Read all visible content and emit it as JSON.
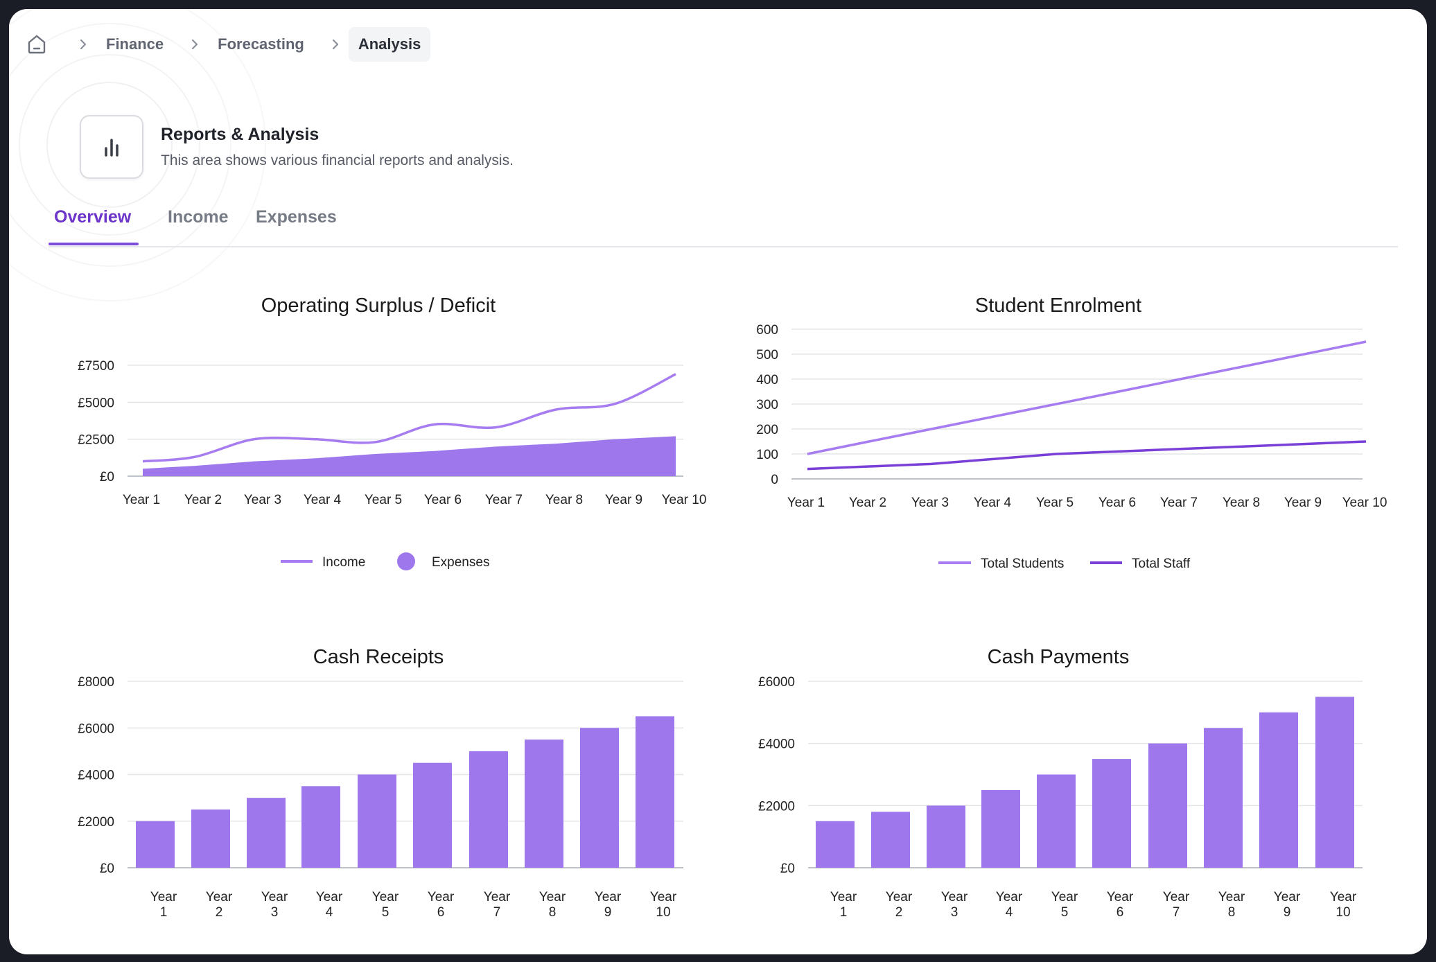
{
  "breadcrumb": {
    "items": [
      "Finance",
      "Forecasting",
      "Analysis"
    ]
  },
  "header": {
    "title": "Reports & Analysis",
    "subtitle": "This area shows various financial reports and analysis.",
    "icon": "bar-chart-icon"
  },
  "tabs": [
    "Overview",
    "Income",
    "Expenses"
  ],
  "active_tab": "Overview",
  "colors": {
    "accent": "#6d34c9",
    "series_light": "#a77cf0",
    "series_dark": "#7a3fd6",
    "bar": "#9e77ed"
  },
  "chart_data": [
    {
      "type": "area",
      "title": "Operating Surplus / Deficit",
      "categories": [
        "Year 1",
        "Year 2",
        "Year 3",
        "Year 4",
        "Year 5",
        "Year 6",
        "Year 7",
        "Year 8",
        "Year 9",
        "Year 10"
      ],
      "ytick_labels": [
        "£0",
        "£2500",
        "£5000",
        "£7500"
      ],
      "ylim": [
        0,
        7500
      ],
      "grid": true,
      "legend": "bottom",
      "series": [
        {
          "name": "Income",
          "kind": "line",
          "values": [
            1000,
            1300,
            2500,
            2500,
            2300,
            3500,
            3300,
            4500,
            4900,
            6900
          ]
        },
        {
          "name": "Expenses",
          "kind": "area",
          "values": [
            500,
            700,
            1000,
            1200,
            1500,
            1700,
            2000,
            2200,
            2500,
            2700
          ]
        }
      ]
    },
    {
      "type": "line",
      "title": "Student Enrolment",
      "categories": [
        "Year 1",
        "Year 2",
        "Year 3",
        "Year 4",
        "Year 5",
        "Year 6",
        "Year 7",
        "Year 8",
        "Year 9",
        "Year 10"
      ],
      "ytick_labels": [
        "0",
        "100",
        "200",
        "300",
        "400",
        "500",
        "600"
      ],
      "ylim": [
        0,
        600
      ],
      "grid": true,
      "legend": "bottom",
      "series": [
        {
          "name": "Total Students",
          "values": [
            100,
            150,
            200,
            250,
            300,
            350,
            400,
            450,
            500,
            550
          ]
        },
        {
          "name": "Total Staff",
          "values": [
            40,
            50,
            60,
            80,
            100,
            110,
            120,
            130,
            140,
            150
          ]
        }
      ]
    },
    {
      "type": "bar",
      "title": "Cash Receipts",
      "categories": [
        "Year 1",
        "Year 2",
        "Year 3",
        "Year 4",
        "Year 5",
        "Year 6",
        "Year 7",
        "Year 8",
        "Year 9",
        "Year 10"
      ],
      "ytick_labels": [
        "£0",
        "£2000",
        "£4000",
        "£6000",
        "£8000"
      ],
      "ylim": [
        0,
        8000
      ],
      "grid": true,
      "values": [
        2000,
        2500,
        3000,
        3500,
        4000,
        4500,
        5000,
        5500,
        6000,
        6500
      ]
    },
    {
      "type": "bar",
      "title": "Cash Payments",
      "categories": [
        "Year 1",
        "Year 2",
        "Year 3",
        "Year 4",
        "Year 5",
        "Year 6",
        "Year 7",
        "Year 8",
        "Year 9",
        "Year 10"
      ],
      "ytick_labels": [
        "£0",
        "£2000",
        "£4000",
        "£6000"
      ],
      "ylim": [
        0,
        6000
      ],
      "grid": true,
      "values": [
        1500,
        1800,
        2000,
        2500,
        3000,
        3500,
        4000,
        4500,
        5000,
        5500
      ]
    }
  ]
}
